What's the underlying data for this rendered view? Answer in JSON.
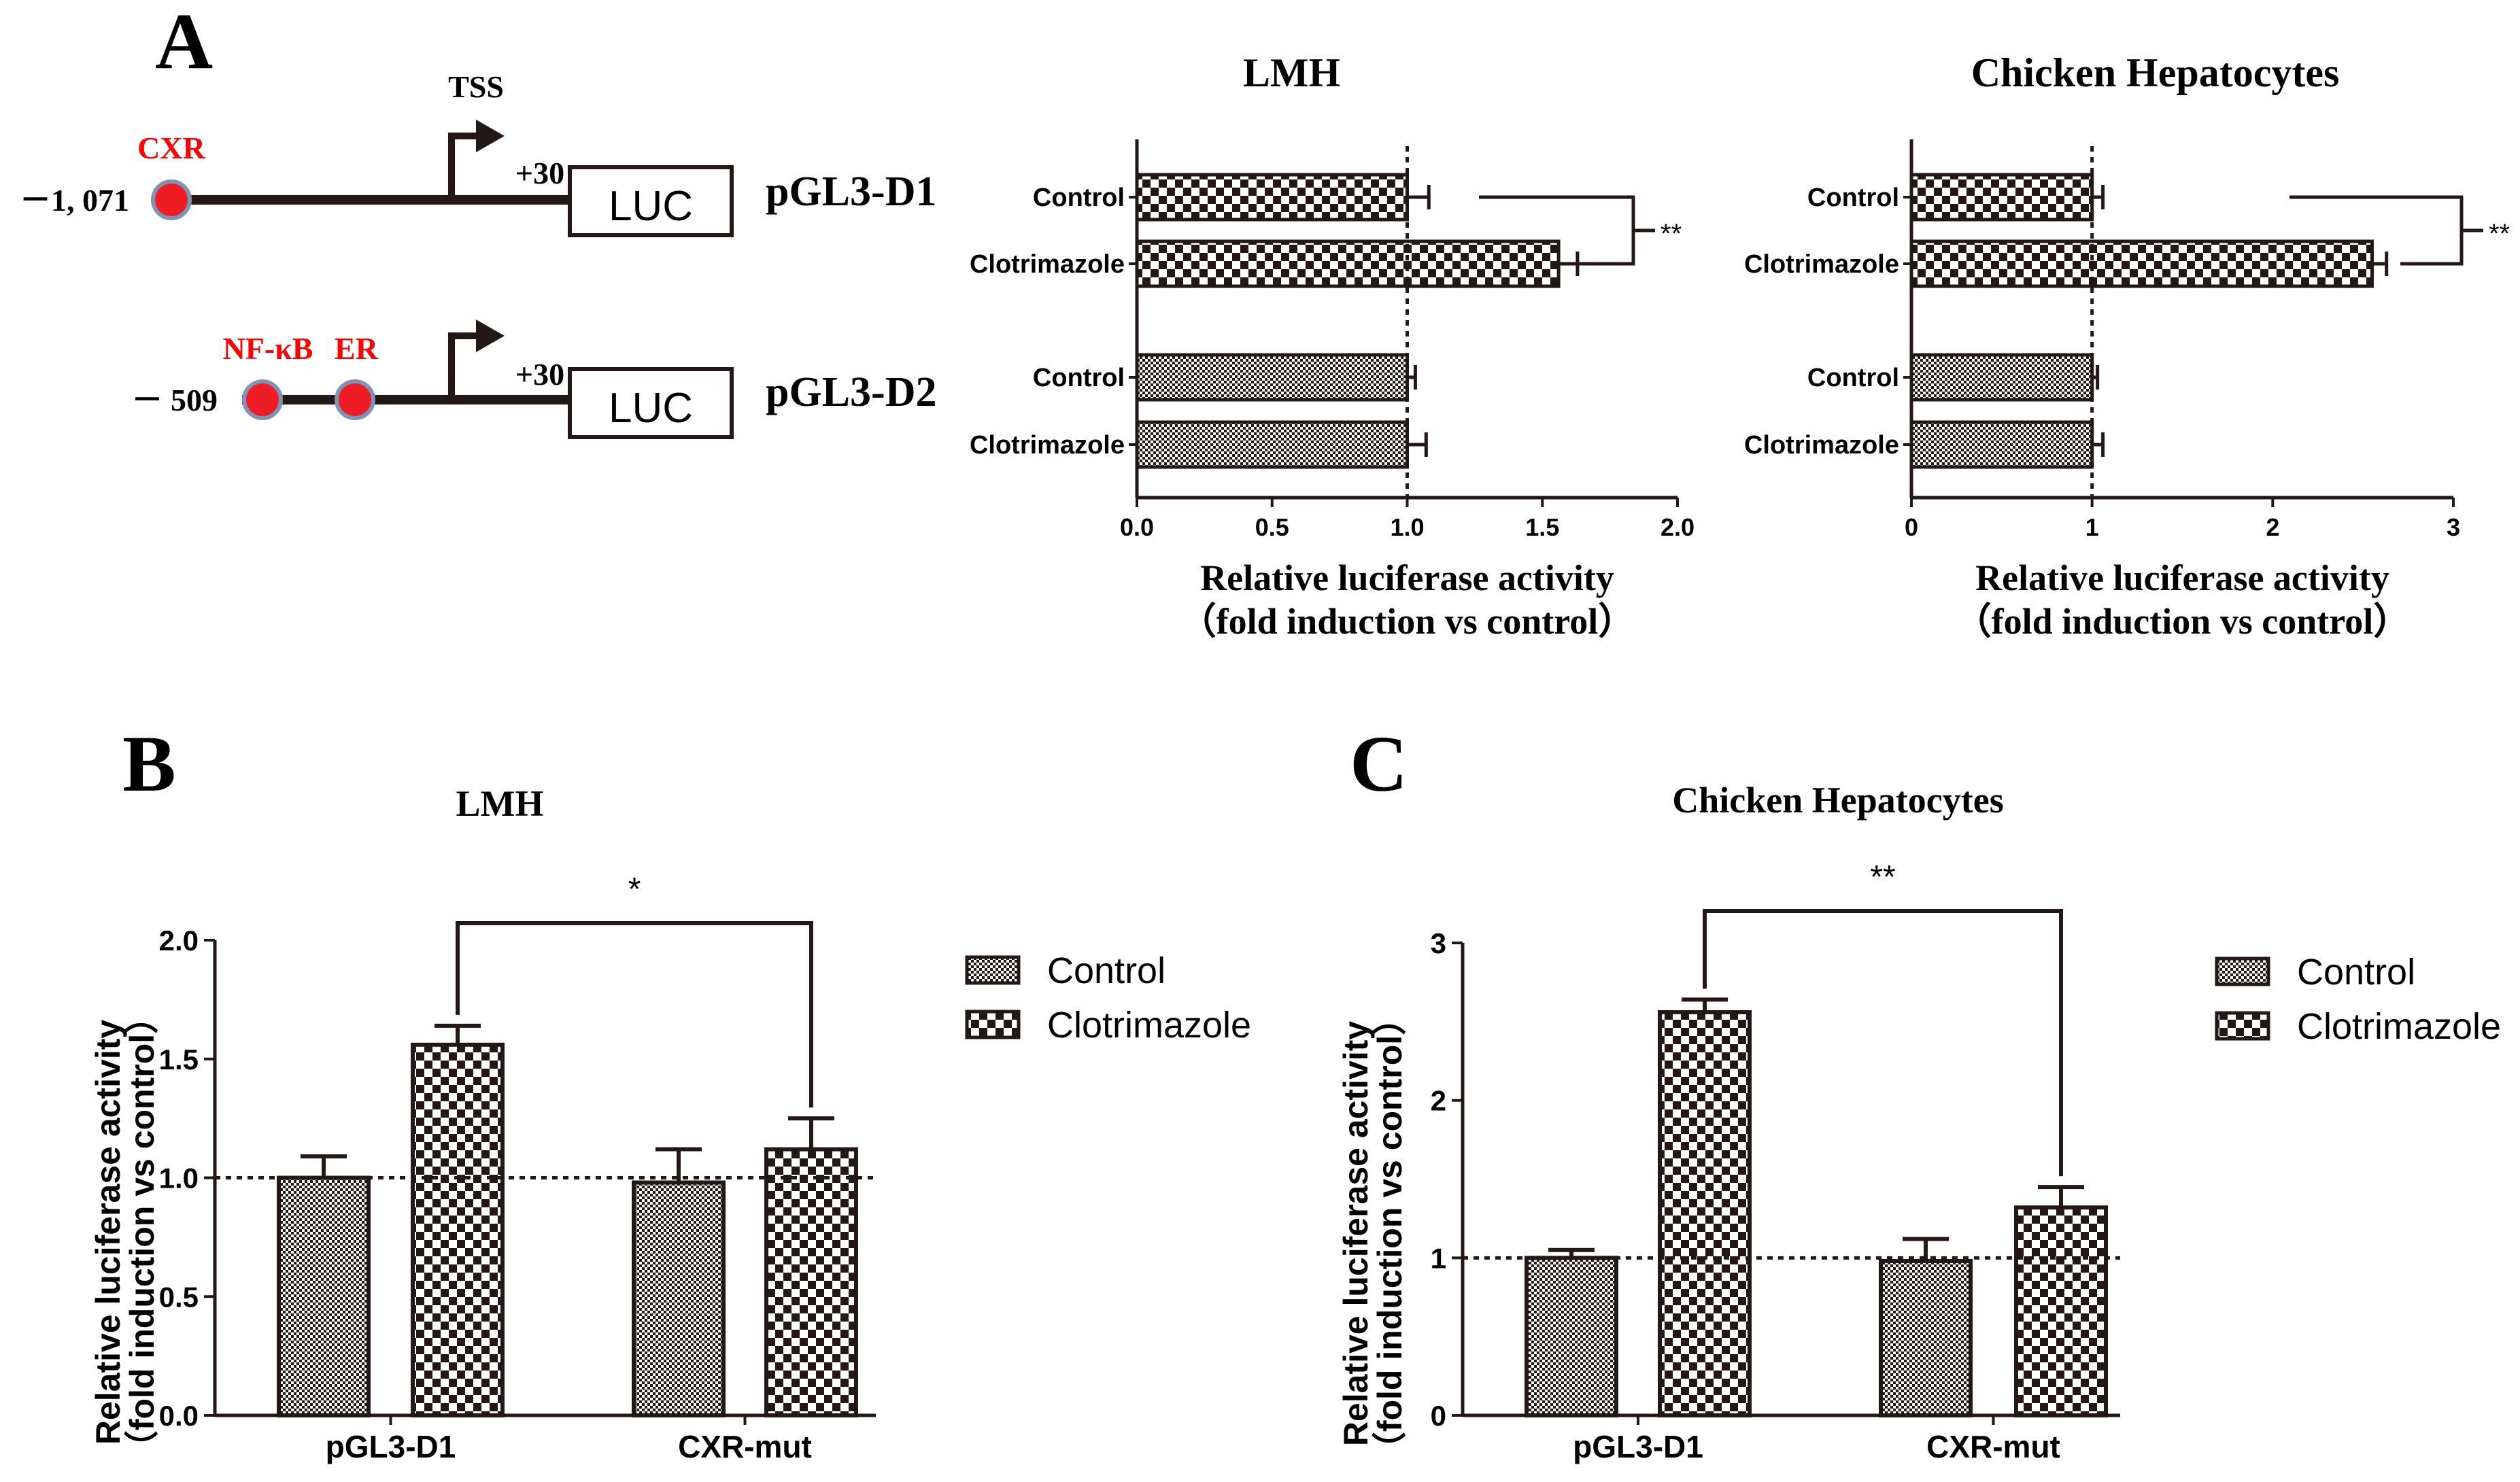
{
  "colors": {
    "ink": "#231815",
    "accent": "#ff0000",
    "site_fill": "#ee1c25",
    "site_stroke": "#7f93b4",
    "bg": "#ffffff"
  },
  "panel_a": {
    "letter": "A",
    "constructs": [
      {
        "name": "pGL3-D1",
        "start": "－1, 071",
        "tss": "TSS",
        "end": "+30",
        "reporter": "LUC",
        "sites": [
          "CXR"
        ]
      },
      {
        "name": "pGL3-D2",
        "start": "－ 509",
        "end": "+30",
        "reporter": "LUC",
        "sites": [
          "NF-κB",
          "ER"
        ]
      }
    ]
  },
  "panel_b": {
    "letter": "B"
  },
  "panel_c": {
    "letter": "C"
  },
  "chart_data": [
    {
      "id": "a-lmh",
      "type": "bar",
      "orientation": "horizontal",
      "title": "LMH",
      "categories": [
        "Control",
        "Clotrimazole",
        "Control",
        "Clotrimazole"
      ],
      "construct_groups": [
        "pGL3-D1",
        "pGL3-D1",
        "pGL3-D2",
        "pGL3-D2"
      ],
      "patterns": [
        "check",
        "check",
        "fine",
        "fine"
      ],
      "values": [
        1.0,
        1.56,
        1.0,
        1.0
      ],
      "errors": [
        0.08,
        0.07,
        0.03,
        0.07
      ],
      "xlim": [
        0,
        2.0
      ],
      "xticks": [
        0.0,
        0.5,
        1.0,
        1.5,
        2.0
      ],
      "xtick_labels": [
        "0.0",
        "0.5",
        "1.0",
        "1.5",
        "2.0"
      ],
      "xlabel": "Relative luciferase activity",
      "xlabel2": "（fold induction vs control）",
      "reference_line": 1.0,
      "significance": {
        "label": "**",
        "between": [
          0,
          1
        ]
      }
    },
    {
      "id": "a-hep",
      "type": "bar",
      "orientation": "horizontal",
      "title": "Chicken Hepatocytes",
      "categories": [
        "Control",
        "Clotrimazole",
        "Control",
        "Clotrimazole"
      ],
      "construct_groups": [
        "pGL3-D1",
        "pGL3-D1",
        "pGL3-D2",
        "pGL3-D2"
      ],
      "patterns": [
        "check",
        "check",
        "fine",
        "fine"
      ],
      "values": [
        1.0,
        2.55,
        1.0,
        1.0
      ],
      "errors": [
        0.06,
        0.08,
        0.03,
        0.06
      ],
      "xlim": [
        0,
        3
      ],
      "xticks": [
        0,
        1,
        2,
        3
      ],
      "xtick_labels": [
        "0",
        "1",
        "2",
        "3"
      ],
      "xlabel": "Relative luciferase activity",
      "xlabel2": "（fold induction vs control）",
      "reference_line": 1.0,
      "significance": {
        "label": "**",
        "between": [
          0,
          1
        ]
      }
    },
    {
      "id": "b",
      "type": "bar",
      "orientation": "vertical",
      "title": "LMH",
      "categories": [
        "pGL3-D1",
        "CXR-mut"
      ],
      "series": [
        {
          "name": "Control",
          "pattern": "fine",
          "values": [
            1.0,
            0.98
          ],
          "errors": [
            0.09,
            0.14
          ]
        },
        {
          "name": "Clotrimazole",
          "pattern": "check",
          "values": [
            1.56,
            1.12
          ],
          "errors": [
            0.08,
            0.13
          ]
        }
      ],
      "ylim": [
        0,
        2.0
      ],
      "yticks": [
        0.0,
        0.5,
        1.0,
        1.5,
        2.0
      ],
      "ytick_labels": [
        "0.0",
        "0.5",
        "1.0",
        "1.5",
        "2.0"
      ],
      "ylabel": "Relative luciferase activity",
      "ylabel2": "（fold induction vs control）",
      "reference_line": 1.0,
      "legend": "right",
      "significance": {
        "label": "*",
        "series": 1,
        "between": [
          0,
          1
        ]
      }
    },
    {
      "id": "c",
      "type": "bar",
      "orientation": "vertical",
      "title": "Chicken Hepatocytes",
      "categories": [
        "pGL3-D1",
        "CXR-mut"
      ],
      "series": [
        {
          "name": "Control",
          "pattern": "fine",
          "values": [
            1.0,
            0.98
          ],
          "errors": [
            0.05,
            0.14
          ]
        },
        {
          "name": "Clotrimazole",
          "pattern": "check",
          "values": [
            2.56,
            1.32
          ],
          "errors": [
            0.08,
            0.13
          ]
        }
      ],
      "ylim": [
        0,
        3
      ],
      "yticks": [
        0,
        1,
        2,
        3
      ],
      "ytick_labels": [
        "0",
        "1",
        "2",
        "3"
      ],
      "ylabel": "Relative luciferase activity",
      "ylabel2": "（fold induction vs control）",
      "reference_line": 1.0,
      "legend": "right",
      "significance": {
        "label": "**",
        "series": 1,
        "between": [
          0,
          1
        ]
      }
    }
  ]
}
